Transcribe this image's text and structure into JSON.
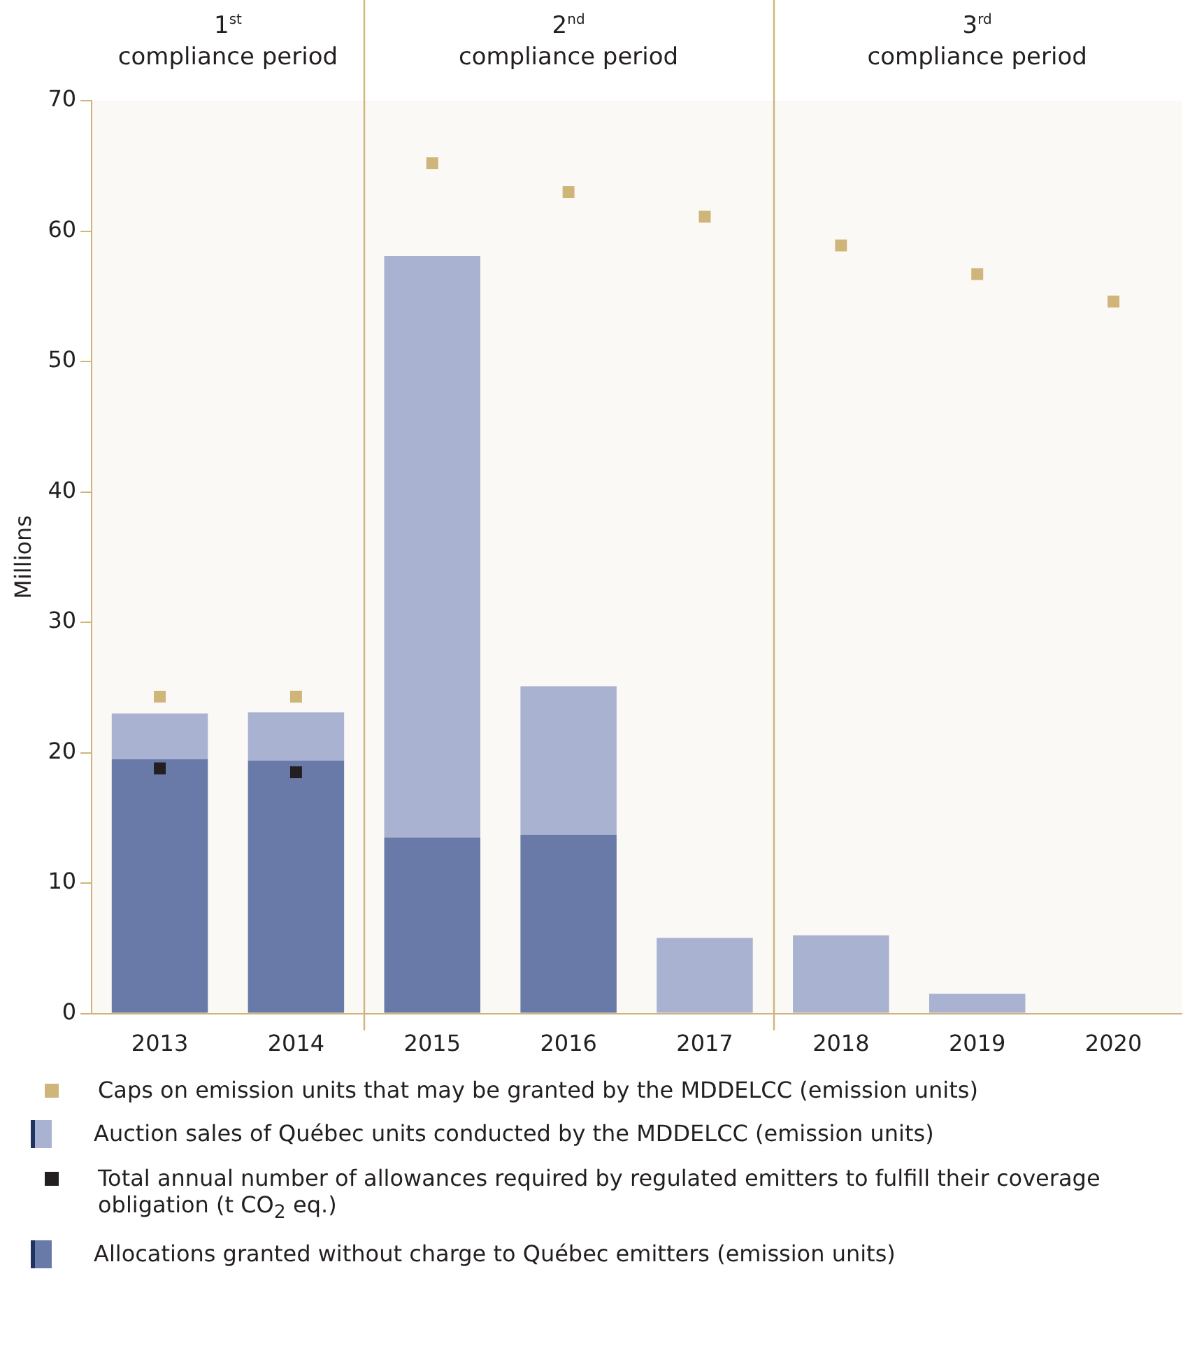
{
  "chart_data": {
    "type": "bar",
    "stacked": true,
    "categories": [
      "2013",
      "2014",
      "2015",
      "2016",
      "2017",
      "2018",
      "2019",
      "2020"
    ],
    "ylabel": "Millions",
    "ylim": [
      0,
      70
    ],
    "yticks": [
      0,
      10,
      20,
      30,
      40,
      50,
      60,
      70
    ],
    "grid": false,
    "legend": "bottom",
    "bands": [
      {
        "axis": "x",
        "from": "2013",
        "to": "2014",
        "label": "1$^{st}$ compliance period",
        "color": "#cfb57a"
      },
      {
        "axis": "x",
        "from": "2015",
        "to": "2017",
        "label": "2$^{nd}$ compliance period",
        "color": "#cfb57a"
      },
      {
        "axis": "x",
        "from": "2018",
        "to": "2020",
        "label": "3$^{rd}$ compliance period",
        "color": "#cfb57a"
      }
    ],
    "series": [
      {
        "name": "Allocations granted without charge to Québec emitters (emission units)",
        "color": "#6a7aa8",
        "values": [
          19.5,
          19.4,
          13.5,
          13.7,
          0,
          0,
          0,
          0
        ]
      },
      {
        "name": "Total annual number of allowances required by regulated emitters to fulfill their coverage obligation (t CO$_{2}$ eq.)",
        "type": "scatter",
        "marker": "square",
        "color": "#231f20",
        "values": [
          18.8,
          18.5,
          null,
          null,
          null,
          null,
          null,
          null
        ]
      },
      {
        "name": "Auction sales of Québec units conducted by the MDDELCC (emission units)",
        "color": "#a9b2d0",
        "values": [
          3.5,
          3.7,
          44.6,
          11.4,
          5.8,
          6.0,
          1.5,
          null
        ]
      },
      {
        "name": "Caps on emission units that may be granted by the MDDELCC (emission units)",
        "type": "scatter",
        "marker": "square",
        "color": "#cfb57a",
        "values": [
          24.3,
          24.3,
          65.2,
          63.0,
          61.1,
          58.9,
          56.7,
          54.6
        ]
      }
    ]
  }
}
